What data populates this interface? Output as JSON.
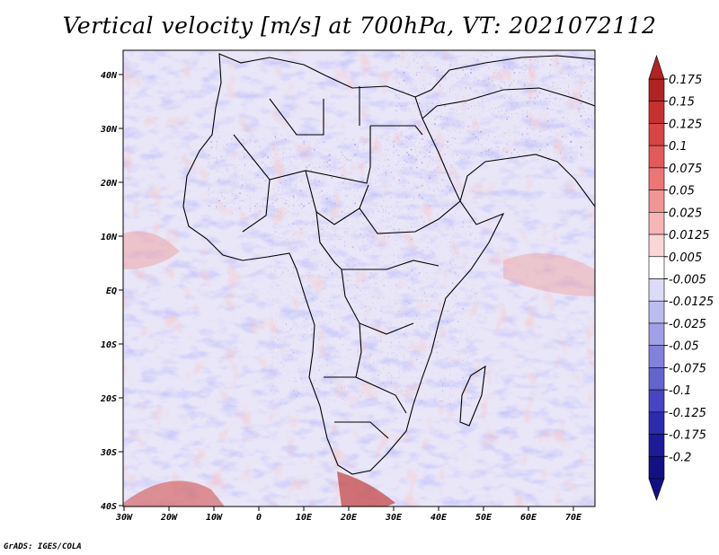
{
  "title": "Vertical velocity [m/s] at 700hPa, VT: 2021072112",
  "credit": "GrADS: IGES/COLA",
  "lat_labels": [
    "40N",
    "30N",
    "20N",
    "10N",
    "EQ",
    "10S",
    "20S",
    "30S",
    "40S"
  ],
  "lon_labels": [
    "30W",
    "20W",
    "10W",
    "0",
    "10E",
    "20E",
    "30E",
    "40E",
    "50E",
    "60E",
    "70E"
  ],
  "colorbar": {
    "labels": [
      "0.175",
      "0.15",
      "0.125",
      "0.1",
      "0.075",
      "0.05",
      "0.025",
      "0.0125",
      "0.005",
      "-0.005",
      "-0.0125",
      "-0.025",
      "-0.05",
      "-0.075",
      "-0.1",
      "-0.125",
      "-0.175",
      "-0.2"
    ],
    "colors": [
      "#b22222",
      "#c83030",
      "#d94444",
      "#e35a5a",
      "#ec7676",
      "#f29595",
      "#f7b5b5",
      "#fbd6d6",
      "#ffffff",
      "#dcdcf8",
      "#bcbcef",
      "#a0a0e6",
      "#8282dc",
      "#6464d0",
      "#4646c2",
      "#2c2cb0",
      "#1c1c9a",
      "#111184"
    ]
  },
  "chart_data": {
    "type": "heatmap",
    "title": "Vertical velocity [m/s] at 700hPa, VT: 2021072112",
    "variable": "Vertical velocity",
    "units": "m/s",
    "level": "700hPa",
    "valid_time": "2021072112",
    "lon_range": [
      -30,
      75
    ],
    "lat_range": [
      -40,
      45
    ],
    "x_ticks": [
      -30,
      -20,
      -10,
      0,
      10,
      20,
      30,
      40,
      50,
      60,
      70
    ],
    "y_ticks": [
      40,
      30,
      20,
      10,
      0,
      -10,
      -20,
      -30,
      -40
    ],
    "color_levels": [
      0.175,
      0.15,
      0.125,
      0.1,
      0.075,
      0.05,
      0.025,
      0.0125,
      0.005,
      -0.005,
      -0.0125,
      -0.025,
      -0.05,
      -0.075,
      -0.1,
      -0.125,
      -0.175,
      -0.2
    ]
  }
}
